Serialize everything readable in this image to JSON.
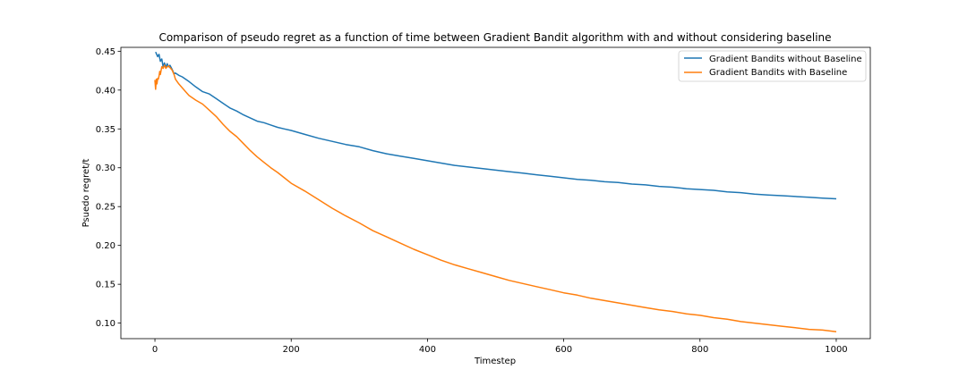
{
  "chart_data": {
    "type": "line",
    "title": "Comparison of pseudo regret as a function of time between Gradient Bandit algorithm with and without considering baseline",
    "xlabel": "Timestep",
    "ylabel": "Psuedo regret/t",
    "xlim": [
      -50,
      1050
    ],
    "ylim": [
      0.08,
      0.455
    ],
    "xticks": [
      0,
      200,
      400,
      600,
      800,
      1000
    ],
    "xtick_labels": [
      "0",
      "200",
      "400",
      "600",
      "800",
      "1000"
    ],
    "yticks": [
      0.1,
      0.15,
      0.2,
      0.25,
      0.3,
      0.35,
      0.4,
      0.45
    ],
    "ytick_labels": [
      "0.10",
      "0.15",
      "0.20",
      "0.25",
      "0.30",
      "0.35",
      "0.40",
      "0.45"
    ],
    "grid": false,
    "legend_position": "top-right",
    "series": [
      {
        "name": "Gradient Bandits without Baseline",
        "color": "#1f77b4",
        "x": [
          1,
          4,
          6,
          8,
          10,
          12,
          14,
          16,
          18,
          20,
          22,
          25,
          28,
          30,
          35,
          40,
          50,
          60,
          70,
          80,
          90,
          100,
          110,
          120,
          130,
          140,
          150,
          160,
          170,
          180,
          190,
          200,
          220,
          240,
          260,
          280,
          300,
          320,
          340,
          360,
          380,
          400,
          420,
          440,
          460,
          480,
          500,
          520,
          540,
          560,
          580,
          600,
          620,
          640,
          660,
          680,
          700,
          720,
          740,
          760,
          780,
          800,
          820,
          840,
          860,
          880,
          900,
          920,
          940,
          960,
          980,
          1000
        ],
        "y": [
          0.449,
          0.443,
          0.446,
          0.437,
          0.44,
          0.43,
          0.435,
          0.429,
          0.434,
          0.43,
          0.432,
          0.427,
          0.421,
          0.422,
          0.419,
          0.417,
          0.411,
          0.404,
          0.398,
          0.395,
          0.389,
          0.383,
          0.377,
          0.373,
          0.368,
          0.364,
          0.36,
          0.358,
          0.355,
          0.352,
          0.35,
          0.348,
          0.343,
          0.338,
          0.334,
          0.33,
          0.327,
          0.322,
          0.318,
          0.315,
          0.312,
          0.309,
          0.306,
          0.303,
          0.301,
          0.299,
          0.297,
          0.295,
          0.293,
          0.291,
          0.289,
          0.287,
          0.285,
          0.284,
          0.282,
          0.281,
          0.279,
          0.278,
          0.276,
          0.275,
          0.273,
          0.272,
          0.271,
          0.269,
          0.268,
          0.266,
          0.265,
          0.264,
          0.263,
          0.262,
          0.261,
          0.26
        ]
      },
      {
        "name": "Gradient Bandits with Baseline",
        "color": "#ff7f0e",
        "x": [
          0,
          1,
          2,
          3,
          4,
          5,
          6,
          7,
          8,
          10,
          12,
          14,
          16,
          18,
          20,
          22,
          25,
          28,
          30,
          35,
          40,
          45,
          50,
          60,
          70,
          80,
          90,
          100,
          110,
          120,
          130,
          140,
          150,
          160,
          170,
          180,
          190,
          200,
          220,
          240,
          260,
          280,
          300,
          320,
          340,
          360,
          380,
          400,
          420,
          440,
          460,
          480,
          500,
          520,
          540,
          560,
          580,
          600,
          620,
          640,
          660,
          680,
          700,
          720,
          740,
          760,
          780,
          800,
          820,
          840,
          860,
          880,
          900,
          920,
          940,
          960,
          980,
          1000
        ],
        "y": [
          0.413,
          0.401,
          0.414,
          0.408,
          0.415,
          0.414,
          0.418,
          0.424,
          0.42,
          0.43,
          0.428,
          0.432,
          0.428,
          0.43,
          0.431,
          0.429,
          0.426,
          0.42,
          0.414,
          0.408,
          0.403,
          0.398,
          0.393,
          0.387,
          0.382,
          0.374,
          0.366,
          0.356,
          0.347,
          0.34,
          0.331,
          0.322,
          0.314,
          0.307,
          0.3,
          0.294,
          0.287,
          0.28,
          0.27,
          0.259,
          0.248,
          0.238,
          0.229,
          0.219,
          0.211,
          0.203,
          0.195,
          0.188,
          0.181,
          0.175,
          0.17,
          0.165,
          0.16,
          0.155,
          0.151,
          0.147,
          0.143,
          0.139,
          0.136,
          0.132,
          0.129,
          0.126,
          0.123,
          0.12,
          0.117,
          0.115,
          0.112,
          0.11,
          0.107,
          0.105,
          0.102,
          0.1,
          0.098,
          0.096,
          0.094,
          0.092,
          0.091,
          0.089
        ]
      }
    ]
  }
}
